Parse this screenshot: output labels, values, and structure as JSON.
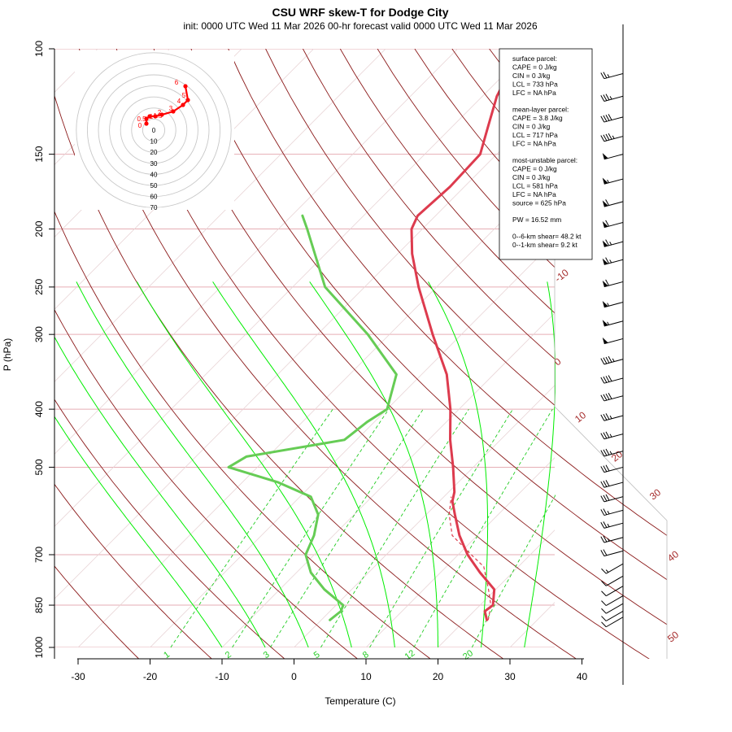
{
  "chart_data": {
    "type": "skew-t",
    "title": "CSU WRF skew-T for Dodge City",
    "subtitle": "init: 0000 UTC Wed 11 Mar 2026     00-hr forecast valid 0000 UTC Wed 11 Mar 2026",
    "xlabel": "Temperature (C)",
    "ylabel": "P (hPa)",
    "pressure_ticks": [
      100,
      150,
      200,
      250,
      300,
      400,
      500,
      700,
      850,
      1000
    ],
    "temperature_ticks": [
      -30,
      -20,
      -10,
      0,
      10,
      20,
      30,
      40
    ],
    "xlim": [
      -33,
      51
    ],
    "plim": [
      1050,
      100
    ],
    "isotherm_labels": [
      -10,
      0,
      10,
      20,
      30,
      40,
      50
    ],
    "mixing_ratio_labels": [
      "1",
      "2",
      "3",
      "5",
      "8",
      "12",
      "20"
    ],
    "temperature_profile": {
      "name": "Temperature",
      "points": [
        {
          "p": 900,
          "t": 23.0
        },
        {
          "p": 870,
          "t": 21.5
        },
        {
          "p": 850,
          "t": 21.8
        },
        {
          "p": 800,
          "t": 19.8
        },
        {
          "p": 750,
          "t": 15.5
        },
        {
          "p": 700,
          "t": 11.3
        },
        {
          "p": 650,
          "t": 7.5
        },
        {
          "p": 600,
          "t": 4.0
        },
        {
          "p": 570,
          "t": 1.8
        },
        {
          "p": 550,
          "t": 0.8
        },
        {
          "p": 500,
          "t": -2.8
        },
        {
          "p": 450,
          "t": -7.0
        },
        {
          "p": 400,
          "t": -11.2
        },
        {
          "p": 350,
          "t": -16.5
        },
        {
          "p": 300,
          "t": -24.0
        },
        {
          "p": 250,
          "t": -32.5
        },
        {
          "p": 220,
          "t": -38.0
        },
        {
          "p": 200,
          "t": -41.5
        },
        {
          "p": 190,
          "t": -42.5
        },
        {
          "p": 170,
          "t": -42.0
        },
        {
          "p": 150,
          "t": -42.3
        },
        {
          "p": 135,
          "t": -45.0
        },
        {
          "p": 120,
          "t": -48.0
        },
        {
          "p": 110,
          "t": -49.5
        },
        {
          "p": 103,
          "t": -51.0
        }
      ]
    },
    "dewpoint_profile": {
      "name": "Dewpoint",
      "points": [
        {
          "p": 900,
          "t": 1.2
        },
        {
          "p": 870,
          "t": 1.5
        },
        {
          "p": 850,
          "t": 1.0
        },
        {
          "p": 800,
          "t": -3.8
        },
        {
          "p": 750,
          "t": -8.0
        },
        {
          "p": 700,
          "t": -11.2
        },
        {
          "p": 650,
          "t": -12.7
        },
        {
          "p": 600,
          "t": -15.0
        },
        {
          "p": 560,
          "t": -18.5
        },
        {
          "p": 530,
          "t": -25.0
        },
        {
          "p": 500,
          "t": -34.0
        },
        {
          "p": 480,
          "t": -33.0
        },
        {
          "p": 450,
          "t": -21.7
        },
        {
          "p": 420,
          "t": -21.0
        },
        {
          "p": 400,
          "t": -20.0
        },
        {
          "p": 350,
          "t": -23.5
        },
        {
          "p": 300,
          "t": -33.0
        },
        {
          "p": 250,
          "t": -45.5
        },
        {
          "p": 200,
          "t": -56.0
        },
        {
          "p": 190,
          "t": -58.5
        }
      ]
    },
    "parcel_profile": {
      "name": "Surface parcel",
      "points": [
        {
          "p": 900,
          "t": 23.2
        },
        {
          "p": 850,
          "t": 21.5
        },
        {
          "p": 800,
          "t": 19.0
        },
        {
          "p": 733,
          "t": 15.2
        },
        {
          "p": 700,
          "t": 11.8
        },
        {
          "p": 650,
          "t": 6.5
        },
        {
          "p": 600,
          "t": 3.2
        },
        {
          "p": 560,
          "t": 1.0
        }
      ]
    },
    "dry_adiabat_thetas_K": [
      250,
      260,
      270,
      280,
      290,
      300,
      310,
      320,
      330,
      340,
      350,
      360,
      370,
      380,
      390,
      400,
      410,
      420,
      430,
      440,
      450,
      460,
      470,
      480,
      490,
      500
    ],
    "moist_adiabat_starts_C": [
      -10,
      -4,
      2,
      8,
      14,
      20,
      26,
      32
    ],
    "mixing_ratios_gkg": [
      1,
      2,
      3,
      5,
      8,
      12,
      20
    ],
    "wind_barbs": [
      {
        "p": 110,
        "kt": 25
      },
      {
        "p": 120,
        "kt": 35
      },
      {
        "p": 130,
        "kt": 40
      },
      {
        "p": 140,
        "kt": 45
      },
      {
        "p": 150,
        "kt": 50
      },
      {
        "p": 165,
        "kt": 55
      },
      {
        "p": 180,
        "kt": 60
      },
      {
        "p": 195,
        "kt": 60
      },
      {
        "p": 210,
        "kt": 65
      },
      {
        "p": 225,
        "kt": 65
      },
      {
        "p": 245,
        "kt": 60
      },
      {
        "p": 265,
        "kt": 55
      },
      {
        "p": 285,
        "kt": 55
      },
      {
        "p": 305,
        "kt": 50
      },
      {
        "p": 330,
        "kt": 45
      },
      {
        "p": 355,
        "kt": 40
      },
      {
        "p": 380,
        "kt": 40
      },
      {
        "p": 410,
        "kt": 35
      },
      {
        "p": 440,
        "kt": 35
      },
      {
        "p": 470,
        "kt": 35
      },
      {
        "p": 500,
        "kt": 30
      },
      {
        "p": 530,
        "kt": 30
      },
      {
        "p": 560,
        "kt": 30
      },
      {
        "p": 590,
        "kt": 25
      },
      {
        "p": 620,
        "kt": 25
      },
      {
        "p": 655,
        "kt": 25
      },
      {
        "p": 690,
        "kt": 20
      },
      {
        "p": 725,
        "kt": 15
      },
      {
        "p": 760,
        "kt": 10
      },
      {
        "p": 790,
        "kt": 10
      },
      {
        "p": 820,
        "kt": 10
      },
      {
        "p": 845,
        "kt": 10
      },
      {
        "p": 870,
        "kt": 10
      },
      {
        "p": 890,
        "kt": 10
      }
    ],
    "hodograph": {
      "ring_labels": [
        "0",
        "10",
        "20",
        "30",
        "40",
        "50",
        "60",
        "70"
      ],
      "height_labels": [
        "0",
        "0.5",
        "1",
        "1.5",
        "2",
        "3",
        "4",
        "5",
        "6"
      ]
    },
    "parcel_info": {
      "surface": [
        "surface parcel:",
        "CAPE = 0 J/kg",
        "CIN = 0 J/kg",
        "LCL = 733 hPa",
        "LFC = NA hPa"
      ],
      "mean_layer": [
        "mean-layer parcel:",
        "CAPE = 3.8 J/kg",
        "CIN = 0 J/kg",
        "LCL = 717 hPa",
        "LFC = NA hPa"
      ],
      "most_unstable": [
        "most-unstable parcel:",
        "CAPE = 0 J/kg",
        "CIN = 0 J/kg",
        "LCL = 581 hPa",
        "LFC = NA hPa",
        "source = 625 hPa"
      ],
      "pw": "PW =  16.52 mm",
      "shear": [
        "0--6-km shear= 48.2 kt",
        "0--1-km shear= 9.2 kt"
      ]
    },
    "colors": {
      "temperature": "#dd3b4e",
      "dewpoint": "#66cc55",
      "isotherm": "#a52a2a",
      "isobar": "#e6aeb4",
      "dry_adiabat": "#8b1a1a",
      "moist_adiabat": "#00ee00",
      "mixing_ratio": "#22cc22",
      "hodograph": "#ff0000"
    }
  }
}
